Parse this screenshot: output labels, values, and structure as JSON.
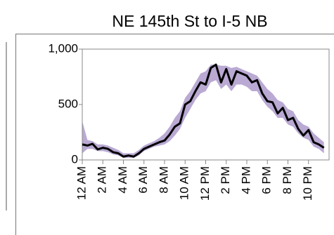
{
  "chart_data": {
    "type": "line",
    "title": "NE 145th St to I-5 NB",
    "x": [
      0,
      0.5,
      1,
      1.5,
      2,
      2.5,
      3,
      3.5,
      4,
      4.5,
      5,
      5.5,
      6,
      6.5,
      7,
      7.5,
      8,
      8.5,
      9,
      9.5,
      10,
      10.5,
      11,
      11.5,
      12,
      12.5,
      13,
      13.5,
      14,
      14.5,
      15,
      15.5,
      16,
      16.5,
      17,
      17.5,
      18,
      18.5,
      19,
      19.5,
      20,
      20.5,
      21,
      21.5,
      22,
      22.5,
      23,
      23.5
    ],
    "values": [
      140,
      130,
      145,
      95,
      110,
      100,
      70,
      60,
      30,
      40,
      30,
      60,
      100,
      120,
      140,
      160,
      175,
      230,
      300,
      330,
      500,
      530,
      620,
      700,
      680,
      830,
      860,
      700,
      820,
      680,
      800,
      780,
      760,
      700,
      720,
      600,
      530,
      520,
      420,
      470,
      360,
      380,
      280,
      220,
      270,
      160,
      140,
      110
    ],
    "band_high": [
      350,
      180,
      170,
      140,
      140,
      130,
      110,
      90,
      60,
      60,
      60,
      90,
      130,
      150,
      170,
      200,
      240,
      300,
      380,
      440,
      560,
      620,
      700,
      780,
      800,
      860,
      860,
      850,
      850,
      830,
      840,
      820,
      800,
      780,
      760,
      700,
      640,
      600,
      540,
      520,
      460,
      440,
      360,
      320,
      300,
      240,
      200,
      160
    ],
    "band_low": [
      60,
      100,
      100,
      80,
      80,
      70,
      50,
      40,
      20,
      20,
      20,
      40,
      80,
      100,
      120,
      130,
      140,
      170,
      220,
      280,
      380,
      460,
      540,
      600,
      620,
      700,
      720,
      640,
      680,
      620,
      680,
      680,
      660,
      620,
      620,
      540,
      480,
      440,
      380,
      380,
      320,
      300,
      240,
      200,
      180,
      120,
      100,
      60
    ],
    "color": "#000000",
    "band_color": "#b9a9d3",
    "xlim": [
      0,
      24
    ],
    "xticks": [
      {
        "value": 0,
        "label": "12 AM"
      },
      {
        "value": 2,
        "label": "2 AM"
      },
      {
        "value": 4,
        "label": "4 AM"
      },
      {
        "value": 6,
        "label": "6 AM"
      },
      {
        "value": 8,
        "label": "8 AM"
      },
      {
        "value": 10,
        "label": "10 AM"
      },
      {
        "value": 12,
        "label": "12 PM"
      },
      {
        "value": 14,
        "label": "2 PM"
      },
      {
        "value": 16,
        "label": "4 PM"
      },
      {
        "value": 18,
        "label": "6 PM"
      },
      {
        "value": 20,
        "label": "8 PM"
      },
      {
        "value": 22,
        "label": "10 PM"
      }
    ],
    "ylim": [
      0,
      1000
    ],
    "yticks": [
      0,
      500,
      {
        "value": 1000,
        "label": "1,000"
      }
    ]
  }
}
